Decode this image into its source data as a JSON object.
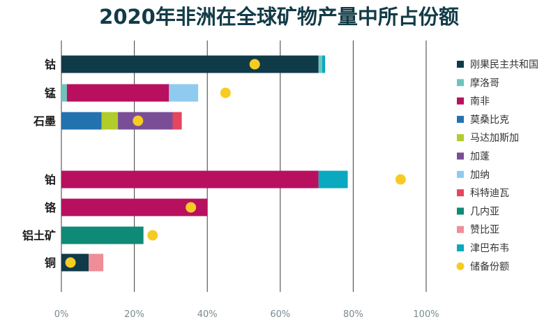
{
  "chart_data": {
    "type": "bar",
    "orientation": "horizontal",
    "stacked": true,
    "title": "2020年非洲在全球矿物产量中所占份额",
    "xlim": [
      0,
      100
    ],
    "x_ticks": [
      "0%",
      "20%",
      "40%",
      "60%",
      "80%",
      "100%"
    ],
    "grid": true,
    "legend_position": "right",
    "categories": [
      "钴",
      "锰",
      "石墨",
      "铂",
      "铬",
      "铝土矿",
      "铜"
    ],
    "series": [
      {
        "name": "刚果民主共和国",
        "color": "#0f3a48",
        "values": [
          70.5,
          0,
          0,
          0,
          0,
          0,
          7.5
        ]
      },
      {
        "name": "摩洛哥",
        "color": "#6cc5bd",
        "values": [
          1,
          1.5,
          0,
          0,
          0,
          0,
          0
        ]
      },
      {
        "name": "南非",
        "color": "#b8105f",
        "values": [
          0,
          28,
          0,
          70.5,
          40,
          0,
          0
        ]
      },
      {
        "name": "莫桑比克",
        "color": "#2272b0",
        "values": [
          0,
          0,
          11,
          0,
          0,
          0,
          0
        ]
      },
      {
        "name": "马达加斯加",
        "color": "#b2cc2a",
        "values": [
          0,
          0,
          4.5,
          0,
          0,
          0,
          0
        ]
      },
      {
        "name": "加蓬",
        "color": "#7a4e97",
        "values": [
          0,
          0,
          15,
          0,
          0,
          0,
          0
        ]
      },
      {
        "name": "加纳",
        "color": "#8fcbee",
        "values": [
          0,
          8,
          0,
          0,
          0,
          0,
          0
        ]
      },
      {
        "name": "科特迪瓦",
        "color": "#e6455e",
        "values": [
          0,
          0,
          2.5,
          0,
          0,
          0,
          0
        ]
      },
      {
        "name": "几内亚",
        "color": "#0f8a77",
        "values": [
          0,
          0,
          0,
          0,
          0,
          22.5,
          0
        ]
      },
      {
        "name": "赞比亚",
        "color": "#ef8e97",
        "values": [
          0,
          0,
          0,
          0,
          0,
          0,
          4
        ]
      },
      {
        "name": "津巴布韦",
        "color": "#0aa9c0",
        "values": [
          0.8,
          0,
          0,
          8,
          0,
          0,
          0
        ]
      }
    ],
    "reserves": {
      "name": "储备份额",
      "color": "#f6cc24",
      "values": [
        53,
        45,
        21,
        93,
        35.5,
        25,
        2.5
      ]
    }
  }
}
